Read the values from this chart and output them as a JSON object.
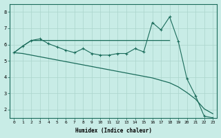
{
  "xlabel": "Humidex (Indice chaleur)",
  "bg_color": "#c8ece6",
  "line_color": "#1a6b5a",
  "grid_color": "#aad4cc",
  "xlim": [
    -0.5,
    23.5
  ],
  "ylim": [
    1.5,
    8.5
  ],
  "yticks": [
    2,
    3,
    4,
    5,
    6,
    7,
    8
  ],
  "xticks": [
    0,
    1,
    2,
    3,
    4,
    5,
    6,
    7,
    8,
    9,
    10,
    11,
    12,
    13,
    14,
    15,
    16,
    17,
    18,
    19,
    20,
    21,
    22,
    23
  ],
  "jagged_x": [
    0,
    1,
    2,
    3,
    4,
    5,
    6,
    7,
    8,
    9,
    10,
    11,
    12,
    13,
    14,
    15,
    16,
    17,
    18,
    19,
    20,
    21,
    22,
    23
  ],
  "jagged_y": [
    5.5,
    5.9,
    6.25,
    6.35,
    6.05,
    5.85,
    5.65,
    5.5,
    5.75,
    5.45,
    5.35,
    5.35,
    5.45,
    5.45,
    5.75,
    5.55,
    7.35,
    6.9,
    7.7,
    6.2,
    3.9,
    2.85,
    1.6,
    1.5
  ],
  "flat_x": [
    0,
    1,
    2,
    3,
    4,
    5,
    6,
    7,
    8,
    9,
    10,
    11,
    12,
    13,
    14,
    15,
    16,
    17,
    18
  ],
  "flat_y": [
    5.5,
    5.9,
    6.25,
    6.25,
    6.25,
    6.25,
    6.25,
    6.25,
    6.25,
    6.25,
    6.25,
    6.25,
    6.25,
    6.25,
    6.25,
    6.25,
    6.25,
    6.25,
    6.25
  ],
  "decline_x": [
    0,
    1,
    2,
    3,
    4,
    5,
    6,
    7,
    8,
    9,
    10,
    11,
    12,
    13,
    14,
    15,
    16,
    17,
    18,
    19,
    20,
    21,
    22,
    23
  ],
  "decline_y": [
    5.5,
    5.45,
    5.35,
    5.25,
    5.15,
    5.05,
    4.95,
    4.85,
    4.75,
    4.65,
    4.55,
    4.45,
    4.35,
    4.25,
    4.15,
    4.05,
    3.95,
    3.8,
    3.65,
    3.4,
    3.05,
    2.65,
    2.05,
    1.75
  ]
}
